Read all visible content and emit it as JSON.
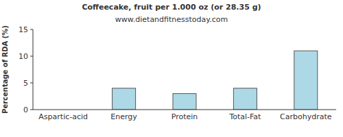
{
  "chart_data": {
    "type": "bar",
    "title": "Coffeecake, fruit per 1.000 oz (or 28.35 g)",
    "subtitle": "www.dietandfitnesstoday.com",
    "ylabel": "Percentage of RDA (%)",
    "categories": [
      "Aspartic-acid",
      "Energy",
      "Protein",
      "Total-Fat",
      "Carbohydrate"
    ],
    "values": [
      0,
      4,
      3,
      4,
      11
    ],
    "color": "#add8e6",
    "ylim": [
      0,
      15
    ],
    "yticks": [
      0,
      5,
      10,
      15
    ],
    "grid": false
  }
}
